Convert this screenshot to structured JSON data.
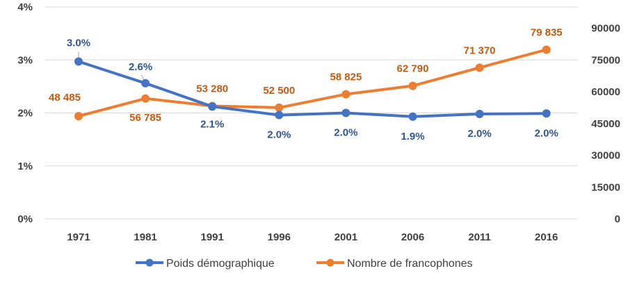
{
  "chart_data": {
    "type": "line",
    "title": "",
    "categories": [
      "1971",
      "1981",
      "1991",
      "1996",
      "2001",
      "2006",
      "2011",
      "2016"
    ],
    "y_left": {
      "ticks": [
        "0%",
        "1%",
        "2%",
        "3%",
        "4%"
      ],
      "ylim": [
        0,
        4
      ]
    },
    "y_right": {
      "ticks": [
        "0",
        "15000",
        "30000",
        "45000",
        "60000",
        "75000",
        "90000"
      ],
      "ylim": [
        0,
        100000
      ]
    },
    "grid": true,
    "legend_position": "bottom",
    "series": [
      {
        "name": "Poids démographique",
        "axis": "left",
        "color": "#4472C4",
        "values": [
          3.0,
          2.6,
          2.1,
          2.0,
          2.0,
          1.9,
          2.0,
          2.0
        ],
        "plot_values": [
          2.97,
          2.56,
          2.12,
          1.96,
          2.0,
          1.93,
          1.98,
          1.99
        ],
        "labels": [
          "3.0%",
          "2.6%",
          "2.1%",
          "2.0%",
          "2.0%",
          "1.9%",
          "2.0%",
          "2.0%"
        ]
      },
      {
        "name": "Nombre de francophones",
        "axis": "right",
        "color": "#ED7D31",
        "values": [
          48485,
          56785,
          53280,
          52500,
          58825,
          62790,
          71370,
          79835
        ],
        "labels": [
          "48 485",
          "56 785",
          "53 280",
          "52 500",
          "58 825",
          "62 790",
          "71 370",
          "79 835"
        ]
      }
    ]
  }
}
